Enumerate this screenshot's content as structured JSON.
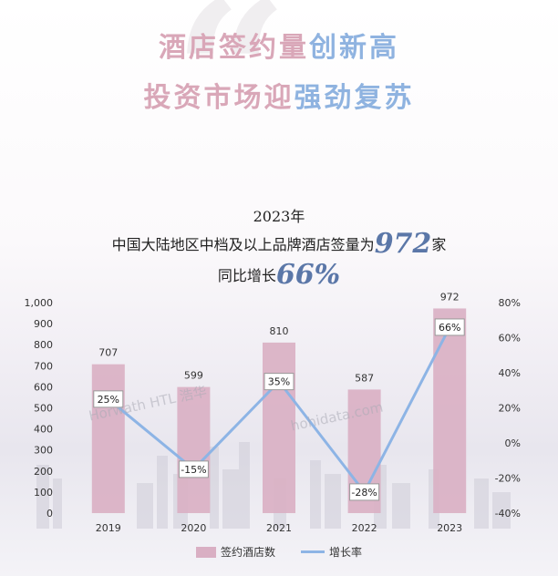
{
  "headline": {
    "line1_pink": "酒店签约量",
    "line1_blue": "创新高",
    "line2_pink": "投资市场迎",
    "line2_blue": "强劲复苏"
  },
  "quote_mark": "“",
  "intro": {
    "year": "2023年",
    "line1_pre": "中国大陆地区中档及以上品牌酒店签量为",
    "line1_num": "972",
    "line1_post": "家",
    "line2_pre": "同比增长",
    "line2_num": "66%"
  },
  "watermarks": [
    "Horwath HTL 浩华",
    "hohidata.com"
  ],
  "legend": {
    "bar": "签约酒店数",
    "line": "增长率"
  },
  "colors": {
    "bar": "#d9afc3",
    "line": "#8db4e5",
    "pink_text": "#d9a7b8",
    "blue_text": "#8fb3e0",
    "highlight": "#5b77a8"
  },
  "chart_data": {
    "type": "bar",
    "categories": [
      "2019",
      "2020",
      "2021",
      "2022",
      "2023"
    ],
    "series": [
      {
        "name": "签约酒店数",
        "type": "bar",
        "axis": "left",
        "values": [
          707,
          599,
          810,
          587,
          972
        ],
        "labels": [
          "707",
          "599",
          "810",
          "587",
          "972"
        ]
      },
      {
        "name": "增长率",
        "type": "line",
        "axis": "right",
        "values": [
          25,
          -15,
          35,
          -28,
          66
        ],
        "labels": [
          "25%",
          "-15%",
          "35%",
          "-28%",
          "66%"
        ]
      }
    ],
    "ylim": [
      0,
      1000
    ],
    "y_ticks": [
      "0",
      "100",
      "200",
      "300",
      "400",
      "500",
      "600",
      "700",
      "800",
      "900",
      "1,000"
    ],
    "y2lim": [
      -40,
      80
    ],
    "y2_ticks": [
      "-40%",
      "-20%",
      "0%",
      "20%",
      "40%",
      "60%",
      "80%"
    ],
    "grid": false,
    "legend_position": "bottom"
  }
}
